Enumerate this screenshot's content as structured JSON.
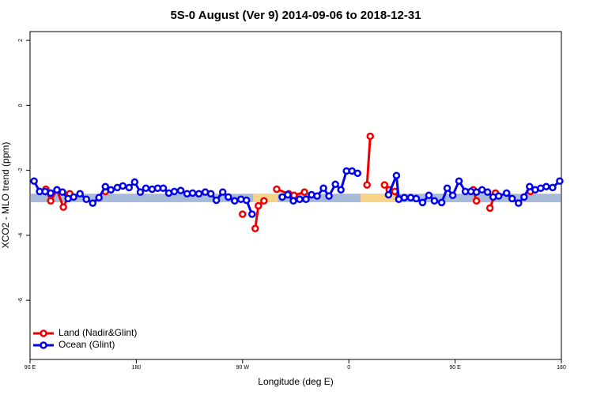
{
  "chart_data": {
    "type": "line",
    "title": "5S-0 August (Ver 9)   2014-09-06 to 2018-12-31",
    "xlabel": "Longitude (deg E)",
    "ylabel": "XCO2 - MLO trend (ppm)",
    "xlim": [
      90,
      540
    ],
    "ylim": [
      -7.82,
      2.27
    ],
    "xticks": [
      {
        "value": 90,
        "label": "90 E"
      },
      {
        "value": 180,
        "label": "180"
      },
      {
        "value": 270,
        "label": "90 W"
      },
      {
        "value": 360,
        "label": "0"
      },
      {
        "value": 450,
        "label": "90 E"
      },
      {
        "value": 540,
        "label": "180"
      }
    ],
    "yticks": [
      2,
      0,
      -2,
      -4,
      -6
    ],
    "band": {
      "y": [
        -2.98,
        -2.72
      ],
      "color": "#a7bbd9",
      "highlights": [
        [
          279,
          300
        ],
        [
          370,
          400
        ]
      ],
      "highlight_color": "#f6d48a"
    },
    "legend": "bottom-left",
    "series": [
      {
        "name": "Land (Nadir&Glint)",
        "color": "#ee0000",
        "x": [
          103.4,
          107.5,
          112.8,
          118.2,
          123.6,
          null,
          153.8,
          null,
          270.0,
          null,
          280.7,
          283.4,
          288.1,
          null,
          298.9,
          309.0,
          313.6,
          322.4,
          null,
          375.4,
          378.1,
          null,
          390.2,
          394.2,
          398.9,
          402.3,
          null,
          465.4,
          468.1,
          null,
          479.5,
          484.2,
          null,
          513.8
        ],
        "values": [
          -2.58,
          -2.94,
          -2.6,
          -3.13,
          -2.72,
          null,
          -2.65,
          null,
          -3.35,
          null,
          -3.79,
          -3.09,
          -2.94,
          null,
          -2.58,
          -2.72,
          -2.77,
          -2.67,
          null,
          -2.45,
          -0.95,
          null,
          -2.45,
          -2.6,
          -2.65,
          -2.87,
          null,
          -2.6,
          -2.94,
          null,
          -3.16,
          -2.7,
          null,
          -2.65
        ]
      },
      {
        "name": "Ocean (Glint)",
        "color": "#0000ee",
        "x": [
          93.4,
          98.1,
          102.8,
          107.5,
          112.8,
          117.5,
          122.2,
          126.9,
          132.3,
          137.7,
          143.1,
          148.4,
          153.8,
          158.5,
          163.9,
          168.6,
          173.9,
          178.6,
          183.4,
          188.1,
          193.4,
          198.1,
          202.8,
          207.5,
          212.2,
          217.6,
          223.0,
          227.7,
          233.0,
          238.4,
          243.1,
          247.8,
          253.2,
          257.9,
          263.3,
          268.6,
          273.3,
          278.0,
          null,
          303.6,
          308.3,
          313.0,
          318.3,
          323.7,
          328.4,
          333.1,
          338.5,
          343.2,
          348.6,
          353.3,
          358.0,
          362.7,
          367.4,
          null,
          393.6,
          400.3,
          402.3,
          407.0,
          412.4,
          417.1,
          422.4,
          427.8,
          432.5,
          438.6,
          443.3,
          448.0,
          453.3,
          458.7,
          463.4,
          468.1,
          472.8,
          477.5,
          482.2,
          486.9,
          493.6,
          498.3,
          503.7,
          508.4,
          513.1,
          517.8,
          522.5,
          527.2,
          532.6,
          538.6
        ],
        "values": [
          -2.33,
          -2.65,
          -2.65,
          -2.7,
          -2.6,
          -2.67,
          -2.87,
          -2.82,
          -2.72,
          -2.89,
          -3.01,
          -2.84,
          -2.5,
          -2.6,
          -2.53,
          -2.48,
          -2.53,
          -2.36,
          -2.67,
          -2.55,
          -2.58,
          -2.55,
          -2.55,
          -2.7,
          -2.65,
          -2.62,
          -2.72,
          -2.7,
          -2.72,
          -2.67,
          -2.72,
          -2.92,
          -2.67,
          -2.82,
          -2.94,
          -2.89,
          -2.92,
          -3.35,
          null,
          -2.82,
          -2.75,
          -2.94,
          -2.89,
          -2.89,
          -2.75,
          -2.79,
          -2.55,
          -2.79,
          -2.43,
          -2.6,
          -2.02,
          -2.02,
          -2.09,
          null,
          -2.75,
          -2.16,
          -2.89,
          -2.84,
          -2.84,
          -2.87,
          -2.99,
          -2.77,
          -2.94,
          -2.99,
          -2.55,
          -2.77,
          -2.33,
          -2.65,
          -2.65,
          -2.67,
          -2.6,
          -2.67,
          -2.82,
          -2.79,
          -2.7,
          -2.87,
          -3.01,
          -2.82,
          -2.5,
          -2.6,
          -2.55,
          -2.5,
          -2.53,
          -2.33
        ]
      }
    ]
  }
}
